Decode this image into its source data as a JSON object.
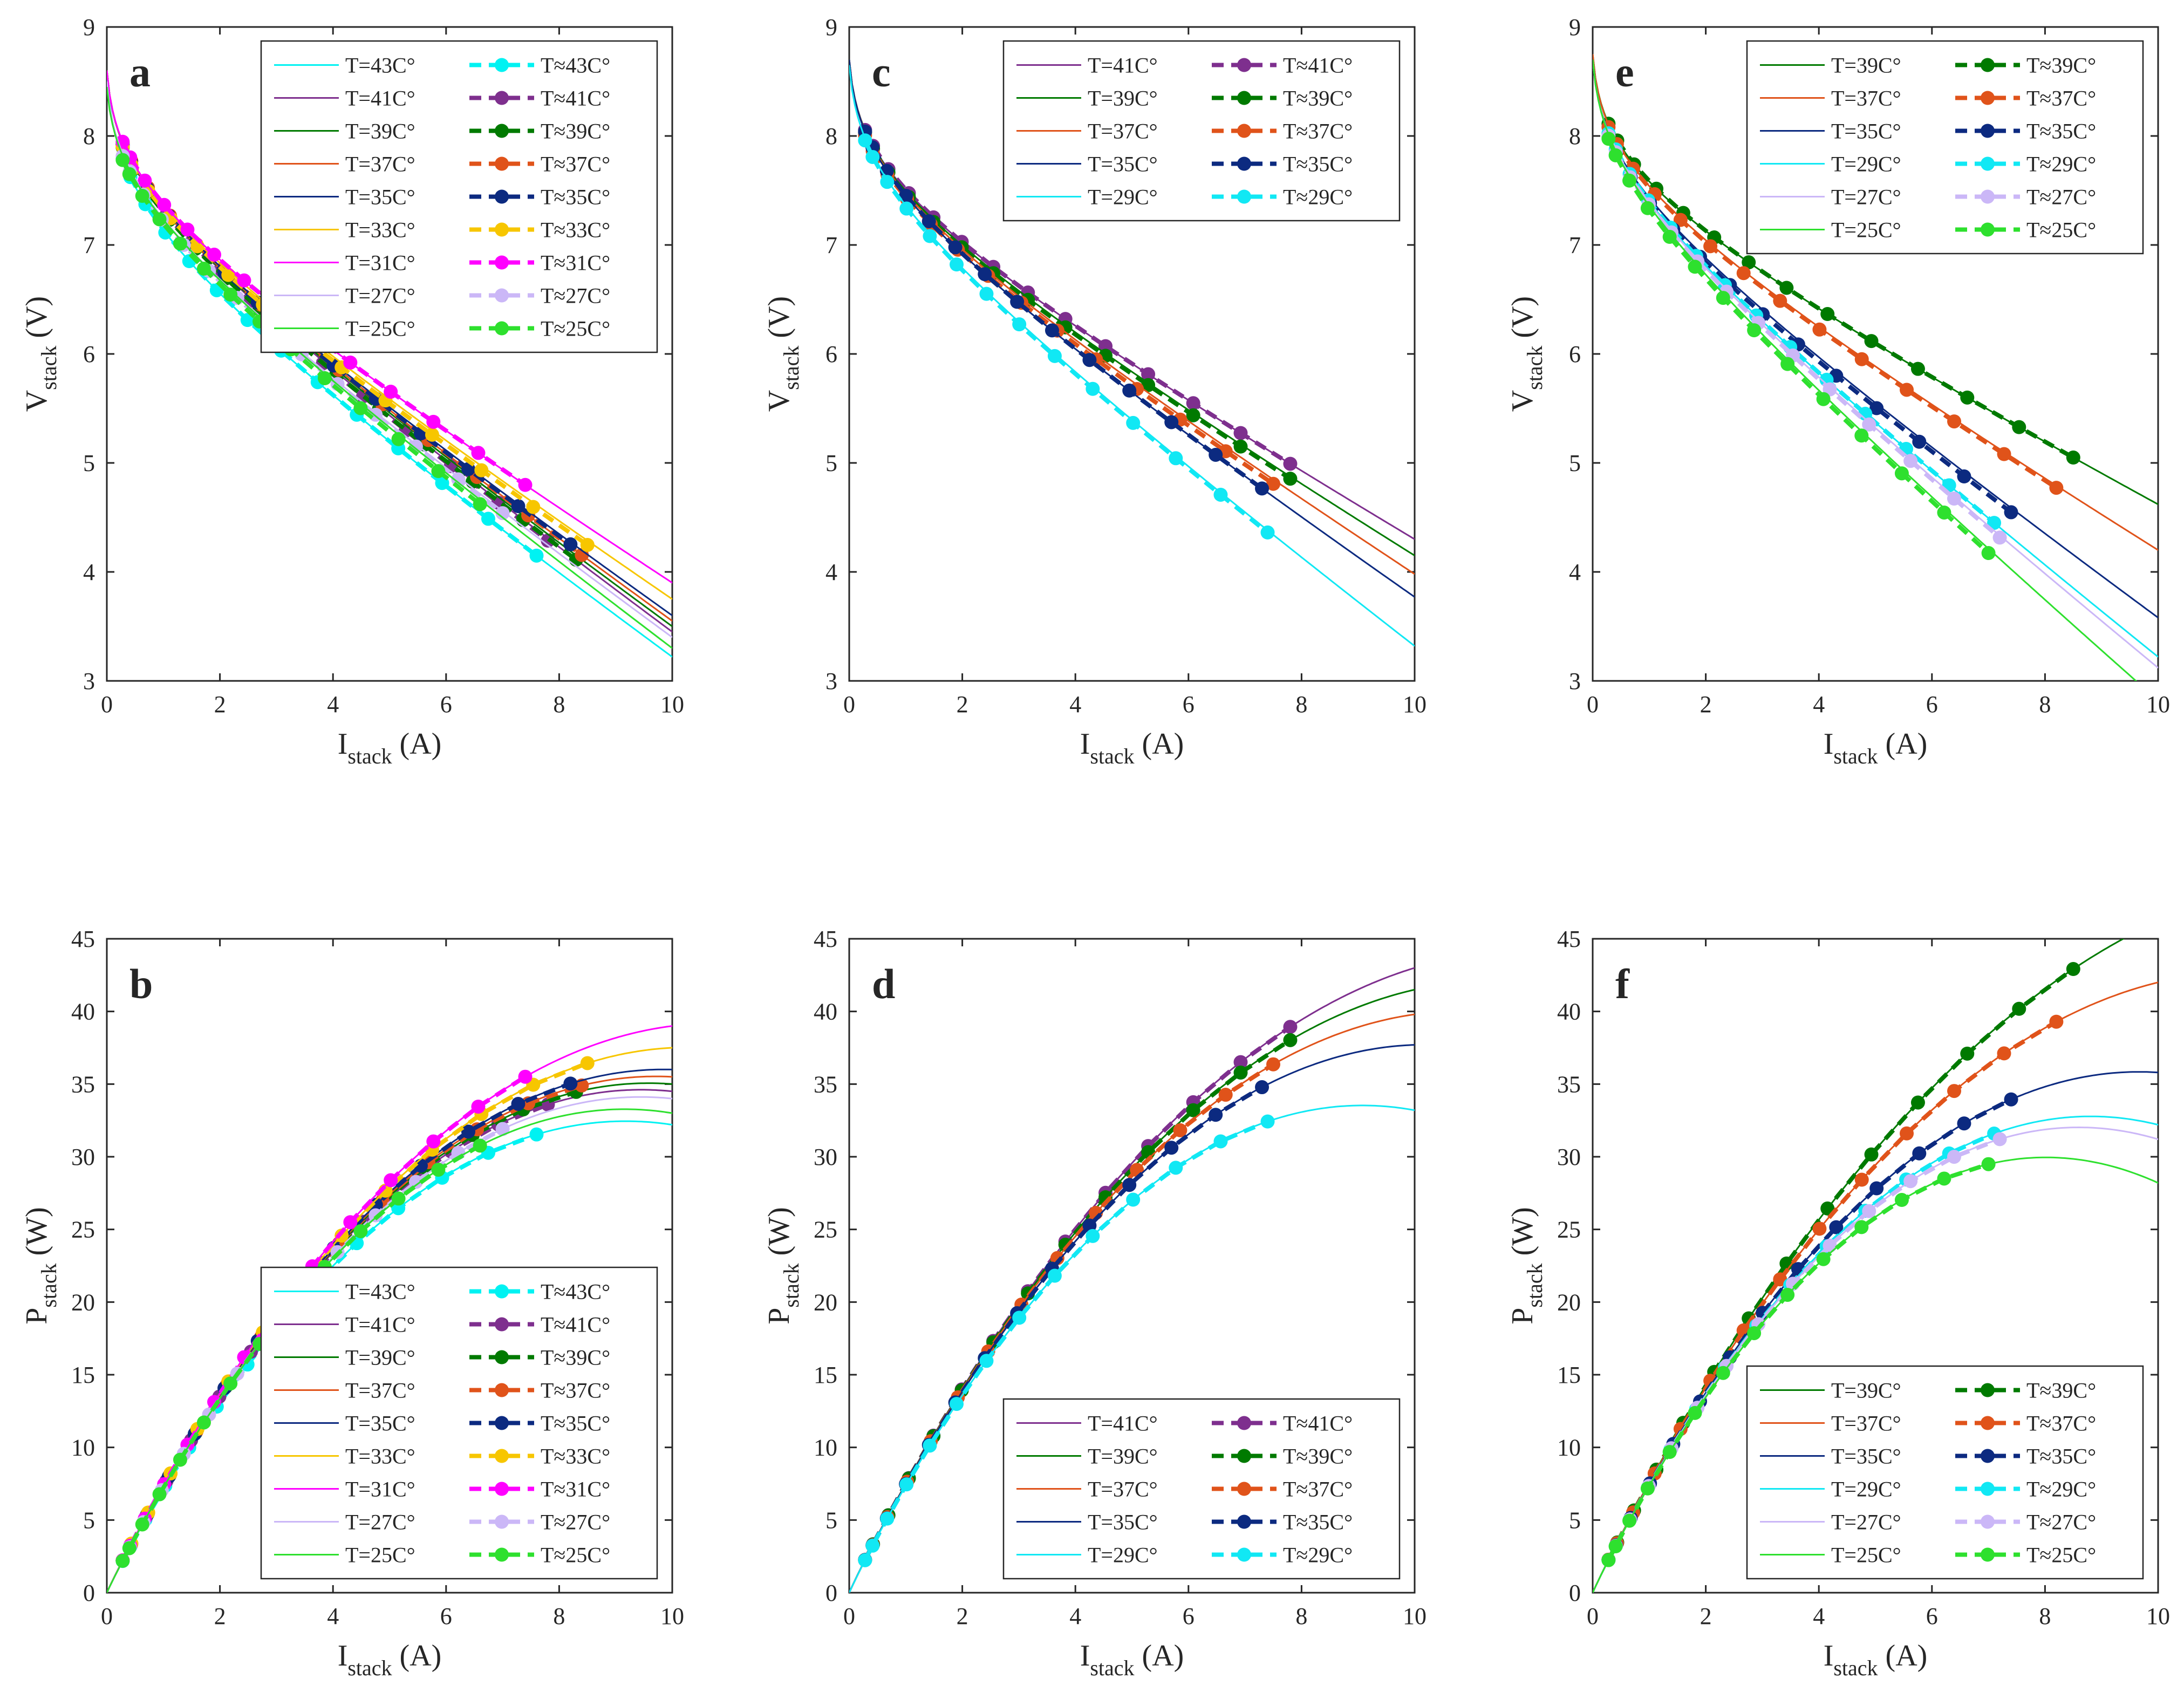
{
  "figure": {
    "panels": [
      "a",
      "b",
      "c",
      "d",
      "e",
      "f"
    ]
  },
  "colors": {
    "T43": "#00f2f2",
    "T41": "#7e2f8e",
    "T39": "#007a00",
    "T37": "#e0531a",
    "T35": "#0c2a80",
    "T33": "#f7c600",
    "T31": "#ff00ff",
    "T29": "#11e8f4",
    "T27": "#cbb7f7",
    "T25": "#2ee02e",
    "axis": "#262626",
    "background": "#ffffff"
  },
  "chart_data": [
    {
      "id": "a",
      "type": "line",
      "panel_label": "a",
      "quantity": "V",
      "xlabel": "I",
      "xlabel_sub": "stack",
      "xlabel_unit": "(A)",
      "ylabel": "V",
      "ylabel_sub": "stack",
      "ylabel_unit": "(V)",
      "xlim": [
        0,
        10
      ],
      "ylim": [
        3,
        9
      ],
      "xticks": [
        "0",
        "2",
        "4",
        "6",
        "8",
        "10"
      ],
      "yticks": [
        "3",
        "4",
        "5",
        "6",
        "7",
        "8",
        "9"
      ],
      "legend_location": "top-right",
      "series": [
        {
          "key": "T43",
          "fit_label": "T=43C°",
          "meas_label": "T≈43C°",
          "v0": 8.55,
          "v10": 3.22,
          "c": 0.35,
          "imax": 7.6
        },
        {
          "key": "T41",
          "fit_label": "T=41C°",
          "meas_label": "T≈41C°",
          "v0": 8.6,
          "v10": 3.45,
          "c": 0.3,
          "imax": 7.8
        },
        {
          "key": "T39",
          "fit_label": "T=39C°",
          "meas_label": "T≈39C°",
          "v0": 8.6,
          "v10": 3.5,
          "c": 0.3,
          "imax": 8.3
        },
        {
          "key": "T37",
          "fit_label": "T=37C°",
          "meas_label": "T≈37C°",
          "v0": 8.6,
          "v10": 3.55,
          "c": 0.3,
          "imax": 8.4
        },
        {
          "key": "T35",
          "fit_label": "T=35C°",
          "meas_label": "T≈35C°",
          "v0": 8.6,
          "v10": 3.6,
          "c": 0.3,
          "imax": 8.2
        },
        {
          "key": "T33",
          "fit_label": "T=33C°",
          "meas_label": "T≈33C°",
          "v0": 8.6,
          "v10": 3.75,
          "c": 0.3,
          "imax": 8.5
        },
        {
          "key": "T31",
          "fit_label": "T=31C°",
          "meas_label": "T≈31C°",
          "v0": 8.6,
          "v10": 3.9,
          "c": 0.3,
          "imax": 7.4
        },
        {
          "key": "T27",
          "fit_label": "T=27C°",
          "meas_label": "T≈27C°",
          "v0": 8.5,
          "v10": 3.4,
          "c": 0.3,
          "imax": 7.0
        },
        {
          "key": "T25",
          "fit_label": "T=25C°",
          "meas_label": "T≈25C°",
          "v0": 8.45,
          "v10": 3.3,
          "c": 0.28,
          "imax": 6.6
        }
      ]
    },
    {
      "id": "b",
      "type": "line",
      "panel_label": "b",
      "quantity": "P",
      "xlabel": "I",
      "xlabel_sub": "stack",
      "xlabel_unit": "(A)",
      "ylabel": "P",
      "ylabel_sub": "stack",
      "ylabel_unit": "(W)",
      "xlim": [
        0,
        10
      ],
      "ylim": [
        0,
        45
      ],
      "xticks": [
        "0",
        "2",
        "4",
        "6",
        "8",
        "10"
      ],
      "yticks": [
        "0",
        "5",
        "10",
        "15",
        "20",
        "25",
        "30",
        "35",
        "40",
        "45"
      ],
      "legend_location": "bottom-right",
      "series": [
        {
          "key": "T43",
          "fit_label": "T=43C°",
          "meas_label": "T≈43C°",
          "v0": 8.55,
          "v10": 3.22,
          "c": 0.35,
          "imax": 7.6
        },
        {
          "key": "T41",
          "fit_label": "T=41C°",
          "meas_label": "T≈41C°",
          "v0": 8.6,
          "v10": 3.45,
          "c": 0.3,
          "imax": 7.8
        },
        {
          "key": "T39",
          "fit_label": "T=39C°",
          "meas_label": "T≈39C°",
          "v0": 8.6,
          "v10": 3.5,
          "c": 0.3,
          "imax": 8.3
        },
        {
          "key": "T37",
          "fit_label": "T=37C°",
          "meas_label": "T≈37C°",
          "v0": 8.6,
          "v10": 3.55,
          "c": 0.3,
          "imax": 8.4
        },
        {
          "key": "T35",
          "fit_label": "T=35C°",
          "meas_label": "T≈35C°",
          "v0": 8.6,
          "v10": 3.6,
          "c": 0.3,
          "imax": 8.2
        },
        {
          "key": "T33",
          "fit_label": "T=33C°",
          "meas_label": "T≈33C°",
          "v0": 8.6,
          "v10": 3.75,
          "c": 0.3,
          "imax": 8.5
        },
        {
          "key": "T31",
          "fit_label": "T=31C°",
          "meas_label": "T≈31C°",
          "v0": 8.6,
          "v10": 3.9,
          "c": 0.3,
          "imax": 7.4
        },
        {
          "key": "T27",
          "fit_label": "T=27C°",
          "meas_label": "T≈27C°",
          "v0": 8.5,
          "v10": 3.4,
          "c": 0.3,
          "imax": 7.0
        },
        {
          "key": "T25",
          "fit_label": "T=25C°",
          "meas_label": "T≈25C°",
          "v0": 8.45,
          "v10": 3.3,
          "c": 0.28,
          "imax": 6.6
        }
      ]
    },
    {
      "id": "c",
      "type": "line",
      "panel_label": "c",
      "quantity": "V",
      "xlabel": "I",
      "xlabel_sub": "stack",
      "xlabel_unit": "(A)",
      "ylabel": "V",
      "ylabel_sub": "stack",
      "ylabel_unit": "(V)",
      "xlim": [
        0,
        10
      ],
      "ylim": [
        3,
        9
      ],
      "xticks": [
        "0",
        "2",
        "4",
        "6",
        "8",
        "10"
      ],
      "yticks": [
        "3",
        "4",
        "5",
        "6",
        "7",
        "8",
        "9"
      ],
      "legend_location": "top-right",
      "series": [
        {
          "key": "T41",
          "fit_label": "T=41C°",
          "meas_label": "T≈41C°",
          "v0": 8.7,
          "v10": 4.3,
          "c": 0.3,
          "imax": 7.8
        },
        {
          "key": "T39",
          "fit_label": "T=39C°",
          "meas_label": "T≈39C°",
          "v0": 8.7,
          "v10": 4.15,
          "c": 0.3,
          "imax": 7.8
        },
        {
          "key": "T37",
          "fit_label": "T=37C°",
          "meas_label": "T≈37C°",
          "v0": 8.7,
          "v10": 3.98,
          "c": 0.3,
          "imax": 7.5
        },
        {
          "key": "T35",
          "fit_label": "T=35C°",
          "meas_label": "T≈35C°",
          "v0": 8.7,
          "v10": 3.77,
          "c": 0.3,
          "imax": 7.3
        },
        {
          "key": "T29",
          "fit_label": "T=29C°",
          "meas_label": "T≈29C°",
          "v0": 8.65,
          "v10": 3.32,
          "c": 0.3,
          "imax": 7.4
        }
      ]
    },
    {
      "id": "d",
      "type": "line",
      "panel_label": "d",
      "quantity": "P",
      "xlabel": "I",
      "xlabel_sub": "stack",
      "xlabel_unit": "(A)",
      "ylabel": "P",
      "ylabel_sub": "stack",
      "ylabel_unit": "(W)",
      "xlim": [
        0,
        10
      ],
      "ylim": [
        0,
        45
      ],
      "xticks": [
        "0",
        "2",
        "4",
        "6",
        "8",
        "10"
      ],
      "yticks": [
        "0",
        "5",
        "10",
        "15",
        "20",
        "25",
        "30",
        "35",
        "40",
        "45"
      ],
      "legend_location": "bottom-right",
      "series": [
        {
          "key": "T41",
          "fit_label": "T=41C°",
          "meas_label": "T≈41C°",
          "v0": 8.7,
          "v10": 4.3,
          "c": 0.3,
          "imax": 7.8
        },
        {
          "key": "T39",
          "fit_label": "T=39C°",
          "meas_label": "T≈39C°",
          "v0": 8.7,
          "v10": 4.15,
          "c": 0.3,
          "imax": 7.8
        },
        {
          "key": "T37",
          "fit_label": "T=37C°",
          "meas_label": "T≈37C°",
          "v0": 8.7,
          "v10": 3.98,
          "c": 0.3,
          "imax": 7.5
        },
        {
          "key": "T35",
          "fit_label": "T=35C°",
          "meas_label": "T≈35C°",
          "v0": 8.7,
          "v10": 3.77,
          "c": 0.3,
          "imax": 7.3
        },
        {
          "key": "T29",
          "fit_label": "T=29C°",
          "meas_label": "T≈29C°",
          "v0": 8.65,
          "v10": 3.32,
          "c": 0.3,
          "imax": 7.4
        }
      ]
    },
    {
      "id": "e",
      "type": "line",
      "panel_label": "e",
      "quantity": "V",
      "xlabel": "I",
      "xlabel_sub": "stack",
      "xlabel_unit": "(A)",
      "ylabel": "V",
      "ylabel_sub": "stack",
      "ylabel_unit": "(V)",
      "xlim": [
        0,
        10
      ],
      "ylim": [
        3,
        9
      ],
      "xticks": [
        "0",
        "2",
        "4",
        "6",
        "8",
        "10"
      ],
      "yticks": [
        "3",
        "4",
        "5",
        "6",
        "7",
        "8",
        "9"
      ],
      "legend_location": "top-right",
      "series": [
        {
          "key": "T39",
          "fit_label": "T=39C°",
          "meas_label": "T≈39C°",
          "v0": 8.75,
          "v10": 4.62,
          "c": 0.3,
          "imax": 8.5
        },
        {
          "key": "T37",
          "fit_label": "T=37C°",
          "meas_label": "T≈37C°",
          "v0": 8.75,
          "v10": 4.2,
          "c": 0.3,
          "imax": 8.2
        },
        {
          "key": "T35",
          "fit_label": "T=35C°",
          "meas_label": "T≈35C°",
          "v0": 8.7,
          "v10": 3.58,
          "c": 0.3,
          "imax": 7.4
        },
        {
          "key": "T29",
          "fit_label": "T=29C°",
          "meas_label": "T≈29C°",
          "v0": 8.7,
          "v10": 3.22,
          "c": 0.3,
          "imax": 7.1
        },
        {
          "key": "T27",
          "fit_label": "T=27C°",
          "meas_label": "T≈27C°",
          "v0": 8.7,
          "v10": 3.12,
          "c": 0.3,
          "imax": 7.2
        },
        {
          "key": "T25",
          "fit_label": "T=25C°",
          "meas_label": "T≈25C°",
          "v0": 8.7,
          "v10": 2.82,
          "c": 0.3,
          "imax": 7.0
        }
      ]
    },
    {
      "id": "f",
      "type": "line",
      "panel_label": "f",
      "quantity": "P",
      "xlabel": "I",
      "xlabel_sub": "stack",
      "xlabel_unit": "(A)",
      "ylabel": "P",
      "ylabel_sub": "stack",
      "ylabel_unit": "(W)",
      "xlim": [
        0,
        10
      ],
      "ylim": [
        0,
        45
      ],
      "xticks": [
        "0",
        "2",
        "4",
        "6",
        "8",
        "10"
      ],
      "yticks": [
        "0",
        "5",
        "10",
        "15",
        "20",
        "25",
        "30",
        "35",
        "40",
        "45"
      ],
      "legend_location": "bottom-right",
      "series": [
        {
          "key": "T39",
          "fit_label": "T=39C°",
          "meas_label": "T≈39C°",
          "v0": 8.75,
          "v10": 4.62,
          "c": 0.3,
          "imax": 8.5
        },
        {
          "key": "T37",
          "fit_label": "T=37C°",
          "meas_label": "T≈37C°",
          "v0": 8.75,
          "v10": 4.2,
          "c": 0.3,
          "imax": 8.2
        },
        {
          "key": "T35",
          "fit_label": "T=35C°",
          "meas_label": "T≈35C°",
          "v0": 8.7,
          "v10": 3.58,
          "c": 0.3,
          "imax": 7.4
        },
        {
          "key": "T29",
          "fit_label": "T=29C°",
          "meas_label": "T≈29C°",
          "v0": 8.7,
          "v10": 3.22,
          "c": 0.3,
          "imax": 7.1
        },
        {
          "key": "T27",
          "fit_label": "T=27C°",
          "meas_label": "T≈27C°",
          "v0": 8.7,
          "v10": 3.12,
          "c": 0.3,
          "imax": 7.2
        },
        {
          "key": "T25",
          "fit_label": "T=25C°",
          "meas_label": "T≈25C°",
          "v0": 8.7,
          "v10": 2.82,
          "c": 0.3,
          "imax": 7.0
        }
      ]
    }
  ]
}
